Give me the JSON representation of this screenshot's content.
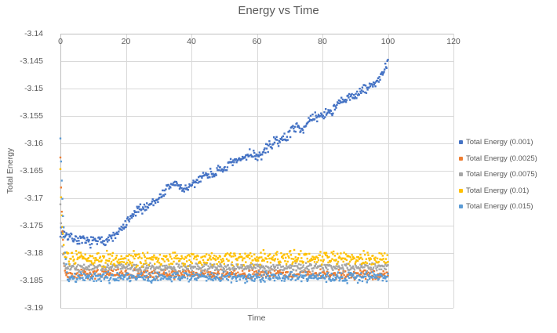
{
  "title": "Energy vs Time",
  "x_axis": {
    "title": "Time",
    "ticks": [
      "0",
      "20",
      "40",
      "60",
      "80",
      "100",
      "120"
    ],
    "min": 0,
    "max": 120
  },
  "y_axis": {
    "title": "Total Energy",
    "ticks": [
      "-3.14",
      "-3.145",
      "-3.15",
      "-3.155",
      "-3.16",
      "-3.165",
      "-3.17",
      "-3.175",
      "-3.18",
      "-3.185",
      "-3.19"
    ],
    "min": -3.19,
    "max": -3.14
  },
  "colors": {
    "text": "#595959",
    "gridline": "#D9D9D9",
    "axis_line": "#BFBFBF",
    "background": "#FFFFFF"
  },
  "legend_position": "right",
  "chart_data": {
    "type": "scatter",
    "title": "Energy vs Time",
    "xlabel": "Time",
    "ylabel": "Total Energy",
    "xlim": [
      0,
      120
    ],
    "ylim": [
      -3.19,
      -3.14
    ],
    "grid": true,
    "x_range": [
      0,
      100
    ],
    "x_step": 0.2,
    "series": [
      {
        "name": "Total Energy (0.001)",
        "color": "#4472C4",
        "seed": 7,
        "noise_amp": 0.0011,
        "trend_anchors": [
          [
            0,
            -3.176
          ],
          [
            3,
            -3.1771
          ],
          [
            8,
            -3.178
          ],
          [
            13,
            -3.1778
          ],
          [
            17,
            -3.1768
          ],
          [
            20,
            -3.1748
          ],
          [
            23,
            -3.1725
          ],
          [
            26,
            -3.1716
          ],
          [
            30,
            -3.17
          ],
          [
            33,
            -3.168
          ],
          [
            35,
            -3.1672
          ],
          [
            37,
            -3.1683
          ],
          [
            40,
            -3.168
          ],
          [
            43,
            -3.166
          ],
          [
            46,
            -3.1655
          ],
          [
            49,
            -3.165
          ],
          [
            52,
            -3.1638
          ],
          [
            55,
            -3.163
          ],
          [
            58,
            -3.1618
          ],
          [
            61,
            -3.1625
          ],
          [
            63,
            -3.1608
          ],
          [
            66,
            -3.1596
          ],
          [
            69,
            -3.159
          ],
          [
            71,
            -3.157
          ],
          [
            74,
            -3.1572
          ],
          [
            77,
            -3.1555
          ],
          [
            80,
            -3.1548
          ],
          [
            83,
            -3.154
          ],
          [
            85,
            -3.1528
          ],
          [
            88,
            -3.1518
          ],
          [
            91,
            -3.1508
          ],
          [
            94,
            -3.1498
          ],
          [
            96,
            -3.149
          ],
          [
            98,
            -3.1478
          ],
          [
            99.4,
            -3.1462
          ],
          [
            100,
            -3.1448
          ]
        ]
      },
      {
        "name": "Total Energy (0.0025)",
        "color": "#ED7D31",
        "seed": 13,
        "noise_amp": 0.001,
        "trend_anchors": [
          [
            0,
            -3.1625
          ],
          [
            0.3,
            -3.1695
          ],
          [
            0.6,
            -3.1755
          ],
          [
            1.0,
            -3.1805
          ],
          [
            1.5,
            -3.1838
          ],
          [
            100,
            -3.1839
          ]
        ]
      },
      {
        "name": "Total Energy (0.0075)",
        "color": "#A5A5A5",
        "seed": 21,
        "noise_amp": 0.0009,
        "trend_anchors": [
          [
            0,
            -3.171
          ],
          [
            0.4,
            -3.1775
          ],
          [
            0.9,
            -3.1812
          ],
          [
            1.5,
            -3.1826
          ],
          [
            100,
            -3.1826
          ]
        ]
      },
      {
        "name": "Total Energy (0.01)",
        "color": "#FFC000",
        "seed": 31,
        "noise_amp": 0.0016,
        "trend_anchors": [
          [
            0,
            -3.1655
          ],
          [
            0.3,
            -3.1715
          ],
          [
            0.7,
            -3.1765
          ],
          [
            1.2,
            -3.18
          ],
          [
            1.8,
            -3.181
          ],
          [
            100,
            -3.181
          ]
        ]
      },
      {
        "name": "Total Energy (0.015)",
        "color": "#5B9BD5",
        "seed": 41,
        "noise_amp": 0.0011,
        "trend_anchors": [
          [
            0,
            -3.1595
          ],
          [
            0.3,
            -3.1655
          ],
          [
            0.6,
            -3.1705
          ],
          [
            1.0,
            -3.1755
          ],
          [
            1.5,
            -3.1805
          ],
          [
            2.2,
            -3.1844
          ],
          [
            100,
            -3.1844
          ]
        ]
      }
    ]
  }
}
